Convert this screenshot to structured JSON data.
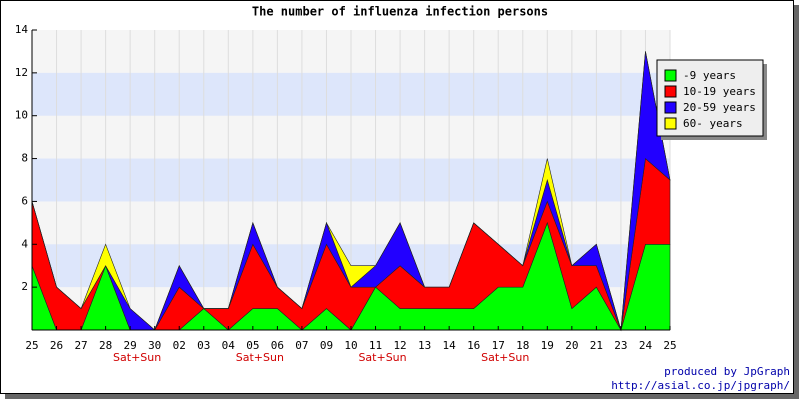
{
  "chart_data": {
    "type": "stacked_area",
    "title": "The number of influenza infection persons",
    "categories": [
      "25",
      "26",
      "27",
      "28",
      "29",
      "30",
      "02",
      "03",
      "04",
      "05",
      "06",
      "07",
      "09",
      "10",
      "11",
      "12",
      "13",
      "14",
      "16",
      "17",
      "18",
      "19",
      "20",
      "21",
      "23",
      "24",
      "25"
    ],
    "sublabels": [
      null,
      null,
      null,
      null,
      "Sat+Sun",
      null,
      null,
      null,
      null,
      "Sat+Sun",
      null,
      null,
      null,
      null,
      "Sat+Sun",
      null,
      null,
      null,
      null,
      "Sat+Sun",
      null,
      null,
      null,
      null,
      null,
      null,
      null
    ],
    "series": [
      {
        "name": "-9 years",
        "color": "#00ff00",
        "values": [
          3,
          0,
          0,
          3,
          0,
          0,
          0,
          1,
          0,
          1,
          1,
          0,
          1,
          0,
          2,
          1,
          1,
          1,
          1,
          2,
          2,
          5,
          1,
          2,
          0,
          4,
          4
        ]
      },
      {
        "name": "10-19 years",
        "color": "#ff0000",
        "values": [
          3,
          2,
          1,
          0,
          0,
          0,
          2,
          0,
          1,
          3,
          1,
          1,
          3,
          2,
          0,
          2,
          1,
          1,
          4,
          2,
          1,
          1,
          2,
          1,
          0,
          4,
          3
        ]
      },
      {
        "name": "20-59 years",
        "color": "#2200ff",
        "values": [
          0,
          0,
          0,
          0,
          1,
          0,
          1,
          0,
          0,
          1,
          0,
          0,
          1,
          0,
          1,
          2,
          0,
          0,
          0,
          0,
          0,
          1,
          0,
          1,
          0,
          5,
          0
        ]
      },
      {
        "name": "60- years",
        "color": "#ffff00",
        "values": [
          0,
          0,
          0,
          1,
          0,
          0,
          0,
          0,
          0,
          0,
          0,
          0,
          0,
          1,
          0,
          0,
          0,
          0,
          0,
          0,
          0,
          1,
          0,
          0,
          0,
          0,
          0
        ]
      }
    ],
    "ylim": [
      0,
      14
    ],
    "yticks": [
      2,
      4,
      6,
      8,
      10,
      12,
      14
    ],
    "grid": true,
    "legend": "upper right",
    "credits": [
      "produced by JpGraph",
      "http://asial.co.jp/jpgraph/"
    ]
  }
}
